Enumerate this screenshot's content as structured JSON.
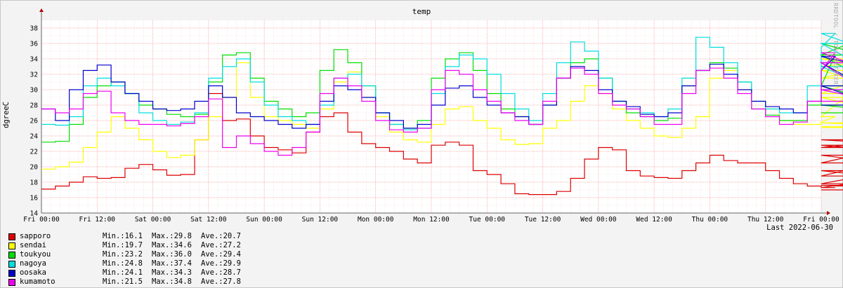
{
  "colors": {
    "sapporo": "#dd0000",
    "sendai": "#ffff00",
    "toukyou": "#00dd00",
    "nagoya": "#00dddd",
    "oosaka": "#0000cc",
    "kumamoto": "#ee00ee",
    "grid_major": "#ff8080",
    "grid_minor": "#f0d0d0",
    "axis": "#666666"
  },
  "side_text": "RRDTOOL / TOBI OETIKER",
  "last_label": "Last 2022-06-30",
  "legend": [
    {
      "name": "sapporo",
      "min": "Min.:16.1",
      "max": "Max.:29.8",
      "ave": "Ave.:20.7"
    },
    {
      "name": "sendai",
      "min": "Min.:19.7",
      "max": "Max.:34.6",
      "ave": "Ave.:27.2"
    },
    {
      "name": "toukyou",
      "min": "Min.:23.2",
      "max": "Max.:36.0",
      "ave": "Ave.:29.4"
    },
    {
      "name": "nagoya",
      "min": "Min.:24.8",
      "max": "Max.:37.4",
      "ave": "Ave.:29.9"
    },
    {
      "name": "oosaka",
      "min": "Min.:24.1",
      "max": "Max.:34.3",
      "ave": "Ave.:28.7"
    },
    {
      "name": "kumamoto",
      "min": "Min.:21.5",
      "max": "Max.:34.8",
      "ave": "Ave.:27.8"
    }
  ],
  "chart_data": {
    "type": "line",
    "title": "temp",
    "ylabel": "dgreeC",
    "xlabel": "",
    "ylim": [
      14,
      39
    ],
    "yticks": [
      14,
      16,
      18,
      20,
      22,
      24,
      26,
      28,
      30,
      32,
      34,
      36,
      38
    ],
    "xlim": [
      0,
      168
    ],
    "x_ticks": [
      {
        "x": 0,
        "label": "Fri 00:00"
      },
      {
        "x": 12,
        "label": "Fri 12:00"
      },
      {
        "x": 24,
        "label": "Sat 00:00"
      },
      {
        "x": 36,
        "label": "Sat 12:00"
      },
      {
        "x": 48,
        "label": "Sun 00:00"
      },
      {
        "x": 60,
        "label": "Sun 12:00"
      },
      {
        "x": 72,
        "label": "Mon 00:00"
      },
      {
        "x": 84,
        "label": "Mon 12:00"
      },
      {
        "x": 96,
        "label": "Tue 00:00"
      },
      {
        "x": 108,
        "label": "Tue 12:00"
      },
      {
        "x": 120,
        "label": "Wed 00:00"
      },
      {
        "x": 132,
        "label": "Wed 12:00"
      },
      {
        "x": 144,
        "label": "Thu 00:00"
      },
      {
        "x": 156,
        "label": "Thu 12:00"
      },
      {
        "x": 168,
        "label": "Fri 00:00"
      }
    ],
    "x_step_hours": 3,
    "grid": true,
    "series": [
      {
        "name": "sapporo",
        "values": [
          17.1,
          17.5,
          18.0,
          18.7,
          18.5,
          18.6,
          19.8,
          20.3,
          19.6,
          18.9,
          19.0,
          23.5,
          29.5,
          26.0,
          26.2,
          24.0,
          22.5,
          22.2,
          21.8,
          24.5,
          26.5,
          27.0,
          24.5,
          23.0,
          22.5,
          22.0,
          21.0,
          20.5,
          22.8,
          23.2,
          22.8,
          19.5,
          19.0,
          17.8,
          16.5,
          16.4,
          16.4,
          16.8,
          18.5,
          21.0,
          22.5,
          22.2,
          19.5,
          18.8,
          18.6,
          18.5,
          19.5,
          20.5,
          21.5,
          20.8,
          20.5,
          20.5,
          19.5,
          18.5,
          17.8,
          17.5,
          17.3,
          17.3,
          17.8,
          18.8,
          20.5,
          22.5,
          23.5,
          22.8,
          21.5,
          19.5,
          17.6,
          17.0,
          17.0
        ]
      },
      {
        "name": "sendai",
        "values": [
          19.7,
          20.0,
          20.6,
          22.5,
          24.5,
          26.5,
          25.0,
          23.5,
          22.0,
          21.2,
          21.5,
          23.5,
          26.5,
          29.0,
          33.5,
          29.0,
          26.5,
          26.0,
          25.5,
          25.0,
          27.5,
          31.0,
          32.3,
          29.0,
          26.5,
          24.5,
          23.5,
          23.2,
          25.5,
          27.5,
          27.8,
          26.0,
          25.0,
          23.5,
          22.9,
          23.0,
          25.0,
          26.0,
          28.5,
          30.5,
          29.5,
          27.5,
          26.0,
          25.0,
          24.0,
          23.8,
          25.0,
          26.5,
          31.5,
          32.5,
          30.0,
          28.5,
          27.5,
          26.0,
          25.5,
          25.5,
          25.8,
          26.5,
          29.5,
          31.5,
          33.0,
          34.0,
          32.5,
          29.0,
          25.7,
          25.1,
          25.2
        ]
      },
      {
        "name": "toukyou",
        "values": [
          23.2,
          23.3,
          25.5,
          29.0,
          30.5,
          31.0,
          29.5,
          28.0,
          27.5,
          26.8,
          26.5,
          26.8,
          31.0,
          34.5,
          34.8,
          31.5,
          28.5,
          27.5,
          26.5,
          27.0,
          32.5,
          35.2,
          33.5,
          30.5,
          27.0,
          25.5,
          25.0,
          26.0,
          31.5,
          34.0,
          34.8,
          32.5,
          29.5,
          27.5,
          26.5,
          25.5,
          28.0,
          31.5,
          33.5,
          34.0,
          31.5,
          28.5,
          27.0,
          26.5,
          26.0,
          26.3,
          30.5,
          32.5,
          33.5,
          32.8,
          31.0,
          27.5,
          26.7,
          26.0,
          26.0,
          28.0,
          30.5,
          34.5,
          36.0,
          34.5,
          30.5,
          28.0,
          27.0
        ]
      },
      {
        "name": "nagoya",
        "values": [
          25.5,
          25.4,
          26.5,
          30.5,
          31.5,
          30.5,
          29.5,
          27.0,
          26.0,
          25.5,
          25.8,
          27.0,
          31.5,
          33.0,
          34.0,
          31.0,
          28.0,
          26.5,
          26.0,
          25.5,
          28.0,
          31.5,
          32.0,
          30.5,
          27.0,
          25.5,
          24.8,
          25.0,
          29.5,
          33.0,
          34.5,
          34.0,
          32.0,
          29.5,
          27.5,
          26.0,
          29.5,
          33.5,
          36.2,
          35.0,
          31.5,
          28.5,
          27.5,
          27.0,
          26.5,
          27.5,
          31.5,
          36.8,
          35.5,
          33.5,
          31.0,
          28.5,
          27.5,
          27.0,
          27.0,
          30.5,
          35.5,
          37.3,
          36.0,
          33.0,
          30.0
        ]
      },
      {
        "name": "oosaka",
        "values": [
          27.5,
          26.0,
          30.0,
          32.5,
          33.2,
          31.0,
          29.5,
          28.5,
          27.5,
          27.3,
          27.5,
          28.5,
          30.5,
          29.0,
          27.0,
          26.5,
          26.0,
          25.5,
          25.0,
          25.5,
          28.5,
          30.5,
          30.0,
          29.0,
          27.0,
          26.0,
          25.0,
          25.5,
          28.0,
          30.2,
          30.5,
          29.0,
          28.0,
          27.0,
          26.5,
          25.5,
          28.0,
          31.5,
          33.0,
          32.5,
          30.0,
          28.5,
          27.8,
          26.8,
          26.5,
          27.0,
          30.5,
          32.5,
          33.3,
          32.0,
          30.0,
          28.5,
          27.8,
          27.5,
          27.0,
          28.5,
          32.5,
          34.3,
          33.5,
          30.5,
          28.0
        ]
      },
      {
        "name": "kumamoto",
        "values": [
          27.5,
          27.0,
          27.5,
          29.5,
          29.8,
          27.0,
          26.0,
          25.5,
          25.5,
          25.3,
          25.6,
          26.5,
          28.8,
          22.5,
          24.0,
          23.0,
          22.0,
          21.5,
          22.5,
          24.5,
          29.5,
          31.5,
          30.5,
          28.5,
          26.0,
          24.8,
          24.5,
          25.0,
          30.0,
          32.5,
          32.0,
          30.0,
          28.5,
          27.0,
          26.0,
          25.5,
          28.5,
          31.5,
          32.8,
          32.0,
          29.5,
          28.0,
          27.5,
          26.5,
          25.5,
          25.5,
          29.5,
          32.5,
          32.8,
          31.5,
          29.5,
          27.5,
          26.5,
          25.5,
          25.8,
          28.5,
          32.5,
          34.8,
          33.5,
          30.0,
          28.5
        ]
      }
    ]
  }
}
